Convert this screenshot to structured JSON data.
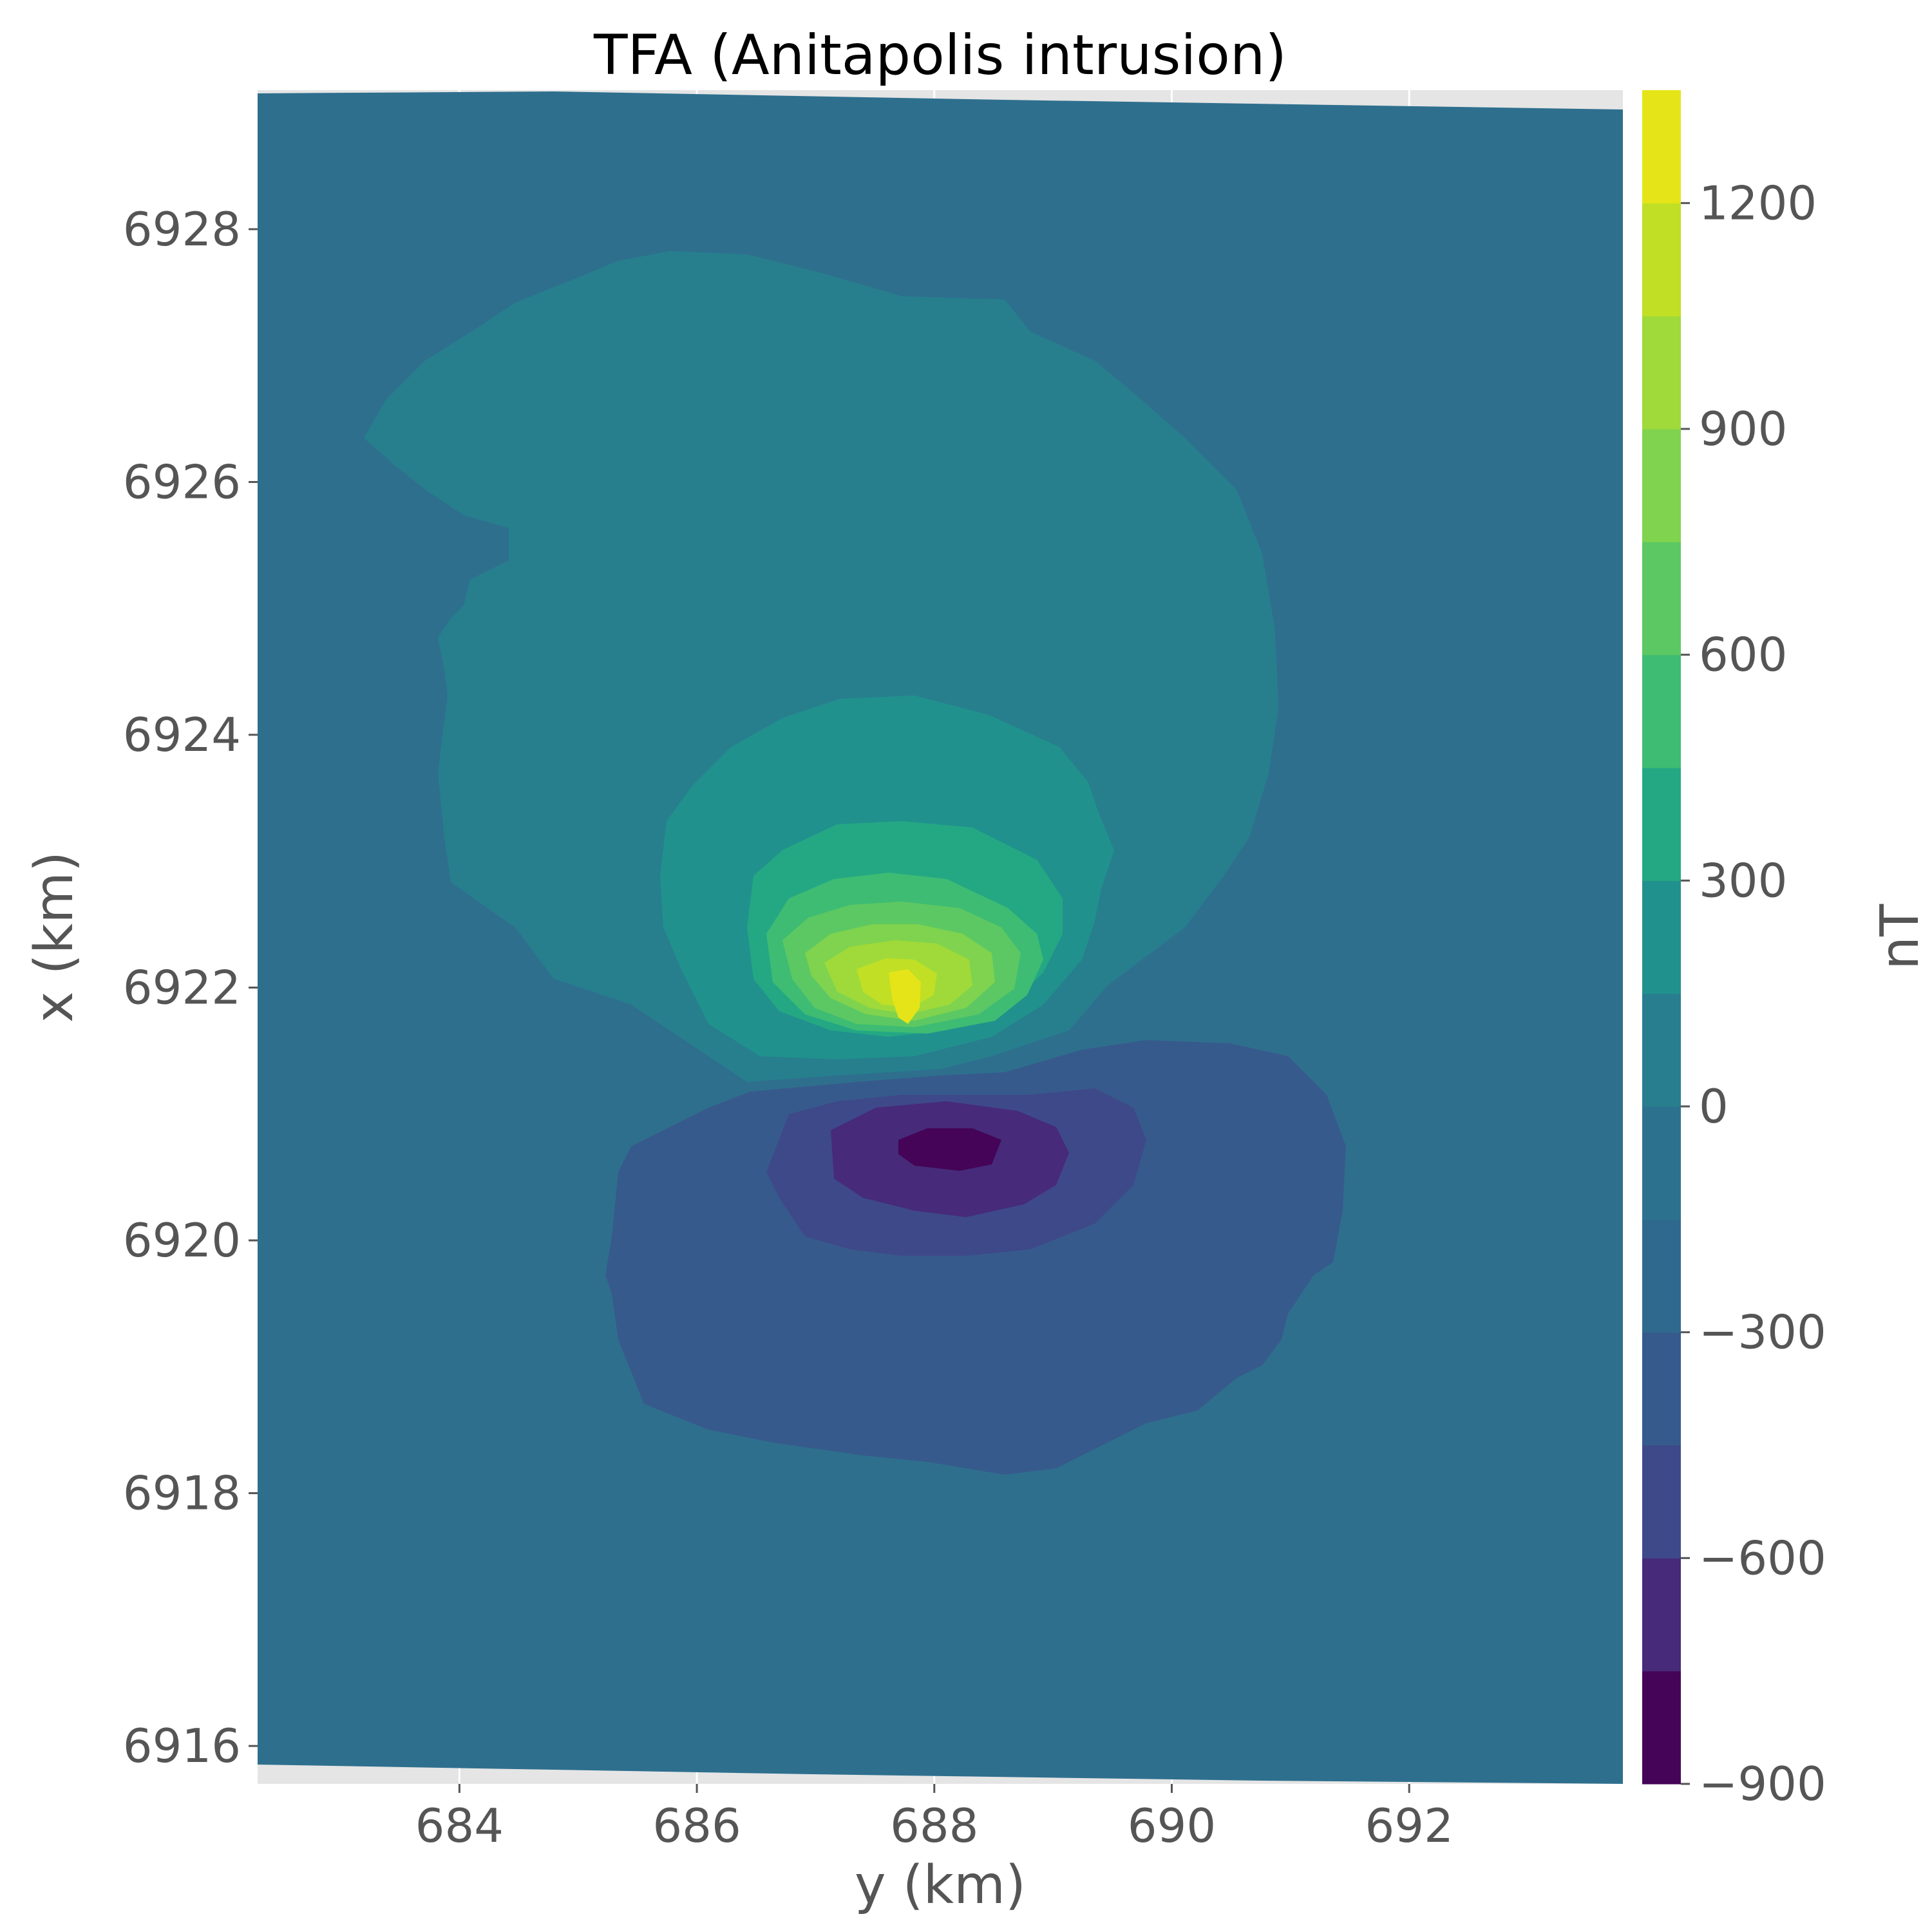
{
  "chart_data": {
    "type": "heatmap",
    "subtype": "filled-contour",
    "title": "TFA (Anitapolis intrusion)",
    "xlabel": "y (km)",
    "ylabel": "x (km)",
    "colorbar_label": "nT",
    "colormap": "viridis",
    "xlim": [
      682.3,
      693.8
    ],
    "ylim": [
      6915.7,
      6929.1
    ],
    "xticks": [
      684,
      686,
      688,
      690,
      692
    ],
    "yticks": [
      6916,
      6918,
      6920,
      6922,
      6924,
      6926,
      6928
    ],
    "colorbar_range": [
      -900,
      1350
    ],
    "colorbar_ticks": [
      -900,
      -600,
      -300,
      0,
      300,
      600,
      900,
      1200
    ],
    "contour_levels": [
      -900,
      -750,
      -600,
      -450,
      -300,
      -150,
      0,
      150,
      300,
      450,
      600,
      750,
      900,
      1050,
      1200,
      1350
    ],
    "level_colors": [
      "#440154",
      "#482475",
      "#414487",
      "#355f8d",
      "#2a788e",
      "#21918c",
      "#22a884",
      "#44bf70",
      "#7ad151",
      "#bddf26",
      "#fde725"
    ],
    "band_colors": [
      "#450457",
      "#472a7a",
      "#3e4989",
      "#375a8c",
      "#30698e",
      "#2c728e",
      "#287d8e",
      "#21918d",
      "#24a884",
      "#3ebc73",
      "#5cc863",
      "#7fd34e",
      "#9fda3a",
      "#c0df25",
      "#e5e419"
    ],
    "grid": true,
    "legend": "colorbar-right",
    "background_value": -75,
    "anomaly": {
      "positive_peak": {
        "y": 687.8,
        "x": 6921.8,
        "value": 1300
      },
      "negative_peak": {
        "y": 688.1,
        "x": 6920.65,
        "value": -850
      }
    }
  }
}
